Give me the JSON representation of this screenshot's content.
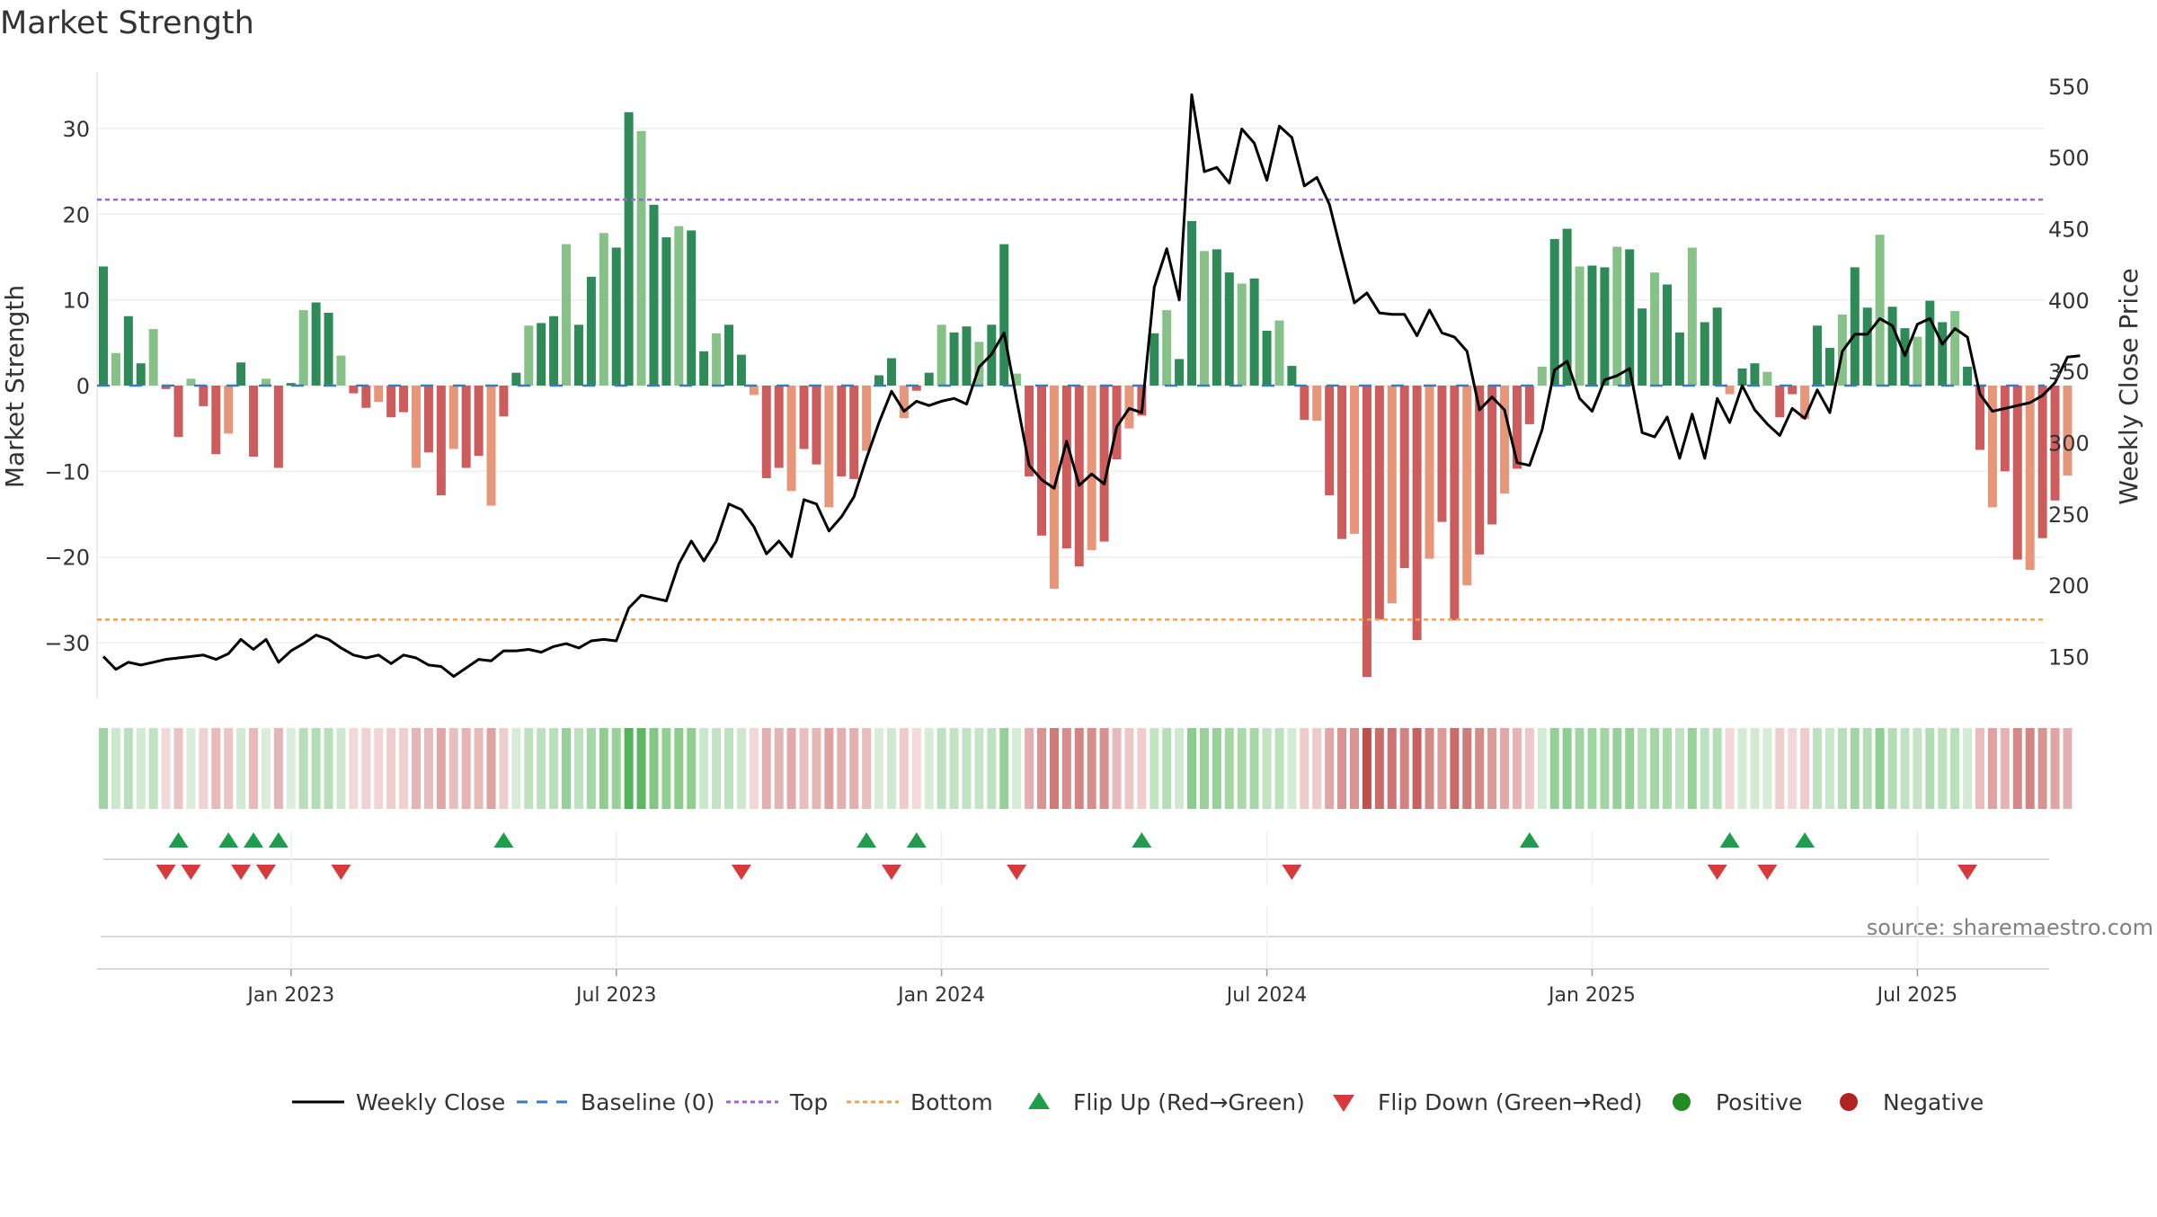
{
  "chart_data": {
    "type": "bar",
    "title": "Market Strength",
    "ylabel_left": "Market Strength",
    "ylabel_right": "Weekly Close Price",
    "source": "source: sharemaestro.com",
    "left_ylim": [
      -36.6,
      36.6
    ],
    "left_yticks": [
      30,
      20,
      10,
      0,
      -10,
      -20,
      -30
    ],
    "left_ytick_labels": [
      "30",
      "20",
      "10",
      "0",
      "−10",
      "−20",
      "−30"
    ],
    "right_ylim": [
      120,
      560
    ],
    "right_yticks": [
      550,
      500,
      450,
      400,
      350,
      300,
      250,
      200,
      150
    ],
    "right_ytick_labels": [
      "550",
      "500",
      "450",
      "400",
      "350",
      "300",
      "250",
      "200",
      "150"
    ],
    "x_tick_labels": [
      "Jan 2023",
      "Jul 2023",
      "Jan 2024",
      "Jul 2024",
      "Jan 2025",
      "Jul 2025"
    ],
    "x_tick_weeks": [
      15,
      41,
      67,
      93,
      119,
      145
    ],
    "top_line": 21.7,
    "bottom_line": -27.3,
    "strength": [
      13.9,
      3.8,
      8.1,
      2.6,
      6.6,
      -0.4,
      -6.0,
      0.8,
      -2.4,
      -8.0,
      -5.6,
      2.7,
      -8.3,
      0.8,
      -9.6,
      0.3,
      8.8,
      9.7,
      8.5,
      3.5,
      -0.9,
      -2.6,
      -1.9,
      -3.7,
      -3.1,
      -9.6,
      -7.8,
      -12.8,
      -7.4,
      -9.6,
      -8.2,
      -14.0,
      -3.6,
      1.5,
      7.0,
      7.3,
      8.1,
      16.5,
      7.1,
      12.7,
      17.8,
      16.1,
      31.9,
      29.7,
      21.1,
      17.3,
      18.6,
      18.1,
      4.0,
      6.1,
      7.1,
      3.6,
      -1.1,
      -10.8,
      -9.6,
      -12.3,
      -7.4,
      -9.2,
      -14.2,
      -10.6,
      -10.9,
      -7.6,
      1.2,
      3.2,
      -3.8,
      -0.6,
      1.5,
      7.1,
      6.2,
      6.9,
      5.1,
      7.1,
      16.5,
      1.4,
      -10.6,
      -17.5,
      -23.7,
      -19.0,
      -21.1,
      -19.2,
      -18.2,
      -8.6,
      -5.0,
      -3.5,
      6.1,
      8.8,
      3.1,
      19.2,
      15.7,
      15.9,
      13.2,
      11.9,
      12.5,
      6.4,
      7.6,
      2.3,
      -4.0,
      -4.1,
      -12.8,
      -17.9,
      -17.3,
      -34.0,
      -27.3,
      -25.4,
      -21.3,
      -29.7,
      -20.2,
      -15.9,
      -27.4,
      -23.3,
      -19.7,
      -16.2,
      -12.6,
      -9.7,
      -4.5,
      2.2,
      17.1,
      18.3,
      13.9,
      14.0,
      13.8,
      16.2,
      15.9,
      9.0,
      13.2,
      11.8,
      6.2,
      16.1,
      7.4,
      9.1,
      -1.0,
      2.0,
      2.6,
      1.6,
      -3.7,
      -1.0,
      -3.9,
      7.0,
      4.4,
      8.3,
      13.8,
      9.1,
      17.6,
      9.2,
      6.7,
      5.7,
      9.9,
      7.4,
      8.7,
      2.2,
      -7.5,
      -14.2,
      -10.0,
      -20.3,
      -21.5,
      -17.8,
      -13.4,
      -10.5
    ],
    "weekly_close": [
      150,
      141,
      146,
      144,
      146,
      148,
      149,
      150,
      151,
      148,
      152,
      162,
      155,
      162,
      146,
      154,
      159,
      165,
      162,
      156,
      151,
      149,
      151,
      145,
      151,
      149,
      144,
      143,
      136,
      142,
      148,
      147,
      154,
      154,
      155,
      153,
      157,
      159,
      156,
      161,
      162,
      161,
      184,
      193,
      191,
      189,
      215,
      231,
      217,
      231,
      257,
      253,
      241,
      222,
      231,
      220,
      260,
      257,
      238,
      248,
      262,
      289,
      314,
      336,
      322,
      329,
      326,
      329,
      331,
      327,
      353,
      362,
      377,
      330,
      284,
      274,
      268,
      301,
      270,
      278,
      271,
      311,
      324,
      321,
      409,
      436,
      400,
      544,
      490,
      493,
      482,
      520,
      510,
      484,
      522,
      514,
      480,
      486,
      467,
      432,
      398,
      405,
      391,
      390,
      390,
      375,
      393,
      377,
      374,
      364,
      323,
      332,
      323,
      286,
      284,
      309,
      351,
      357,
      331,
      322,
      344,
      347,
      352,
      307,
      304,
      318,
      289,
      320,
      289,
      331,
      314,
      340,
      323,
      313,
      305,
      324,
      317,
      337,
      321,
      364,
      376,
      376,
      387,
      382,
      361,
      383,
      387,
      369,
      380,
      374,
      334,
      322,
      324,
      326,
      328,
      333,
      342,
      360,
      361
    ],
    "flip_up_weeks": [
      6,
      10,
      12,
      14,
      32,
      61,
      65,
      83,
      114,
      130,
      136
    ],
    "flip_down_weeks": [
      5,
      7,
      11,
      13,
      19,
      51,
      63,
      73,
      95,
      129,
      133,
      149
    ],
    "legend": [
      "Weekly Close",
      "Baseline (0)",
      "Top",
      "Bottom",
      "Flip Up (Red→Green)",
      "Flip Down (Green→Red)",
      "Positive",
      "Negative"
    ],
    "colors": {
      "pos_strong": "#2e8b57",
      "pos_light": "#86c287",
      "neg_strong": "#cd5c5c",
      "neg_light": "#e8967a",
      "top": "#9f63d6",
      "bottom": "#f0a05a",
      "baseline": "#3d7bb7",
      "close": "#000000",
      "flip_up": "#1e9e4c",
      "flip_down": "#d63a3a",
      "positive": "#228b22",
      "negative": "#b22222",
      "source": "#808080",
      "grid": "#eeeeee",
      "text": "#333333"
    }
  }
}
